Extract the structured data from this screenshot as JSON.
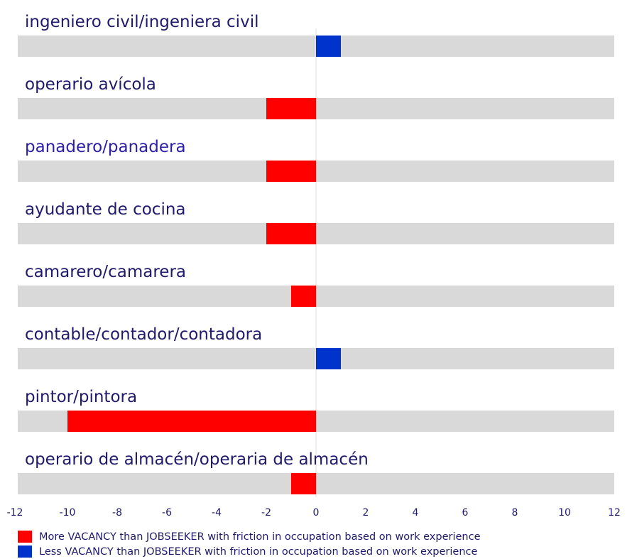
{
  "chart_data": {
    "type": "bar",
    "orientation": "horizontal",
    "categories": [
      "ingeniero civil/ingeniera civil",
      "operario avícola",
      "panadero/panadera",
      "ayudante de cocina",
      "camarero/camarera",
      "contable/contador/contadora",
      "pintor/pintora",
      "operario de almacén/operaria de almacén"
    ],
    "values": [
      1,
      -2,
      -2,
      -2,
      -1,
      1,
      -10,
      -1
    ],
    "xlim": [
      -12,
      12
    ],
    "xticks": [
      "-12",
      "-10",
      "-8",
      "-6",
      "-4",
      "-2",
      "0",
      "2",
      "4",
      "6",
      "8",
      "10",
      "12"
    ],
    "legend": [
      {
        "label": "More VACANCY than JOBSEEKER with friction in occupation based on work experience",
        "color": "#ff0000"
      },
      {
        "label": "Less VACANCY than JOBSEEKER with friction in occupation based on work experience",
        "color": "#0033cc"
      }
    ],
    "legend_position": "bottom-left",
    "colors": {
      "negative": "#ff0000",
      "positive": "#0033cc",
      "track": "#d9d9d9",
      "label": "#1f1a6b",
      "label_alt": "#2b1fa8"
    }
  }
}
